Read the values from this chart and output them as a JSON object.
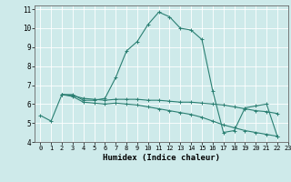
{
  "xlabel": "Humidex (Indice chaleur)",
  "ylabel": "",
  "xlim": [
    -0.5,
    23
  ],
  "ylim": [
    4,
    11.2
  ],
  "xticks": [
    0,
    1,
    2,
    3,
    4,
    5,
    6,
    7,
    8,
    9,
    10,
    11,
    12,
    13,
    14,
    15,
    16,
    17,
    18,
    19,
    20,
    21,
    22,
    23
  ],
  "yticks": [
    4,
    5,
    6,
    7,
    8,
    9,
    10,
    11
  ],
  "bg_color": "#ceeaea",
  "grid_color": "#ffffff",
  "line_color": "#2a7f72",
  "line1_x": [
    0,
    1,
    2,
    3,
    4,
    5,
    6,
    7,
    8,
    9,
    10,
    11,
    12,
    13,
    14,
    15,
    16,
    17,
    18,
    19,
    20,
    21,
    22
  ],
  "line1_y": [
    5.4,
    5.1,
    6.5,
    6.5,
    6.2,
    6.2,
    6.3,
    7.4,
    8.8,
    9.3,
    10.2,
    10.85,
    10.6,
    10.0,
    9.9,
    9.4,
    6.7,
    4.5,
    4.6,
    5.8,
    5.9,
    6.0,
    4.3
  ],
  "line2_x": [
    2,
    3,
    4,
    5,
    6,
    7,
    8,
    9,
    10,
    11,
    12,
    13,
    14,
    15,
    16,
    17,
    18,
    19,
    20,
    21,
    22
  ],
  "line2_y": [
    6.5,
    6.45,
    6.3,
    6.25,
    6.2,
    6.25,
    6.25,
    6.25,
    6.2,
    6.2,
    6.15,
    6.1,
    6.1,
    6.05,
    6.0,
    5.95,
    5.85,
    5.75,
    5.65,
    5.6,
    5.5
  ],
  "line3_x": [
    2,
    3,
    4,
    5,
    6,
    7,
    8,
    9,
    10,
    11,
    12,
    13,
    14,
    15,
    16,
    17,
    18,
    19,
    20,
    21,
    22
  ],
  "line3_y": [
    6.5,
    6.4,
    6.1,
    6.05,
    6.0,
    6.05,
    6.0,
    5.95,
    5.85,
    5.75,
    5.65,
    5.55,
    5.45,
    5.3,
    5.1,
    4.9,
    4.75,
    4.6,
    4.5,
    4.4,
    4.3
  ]
}
